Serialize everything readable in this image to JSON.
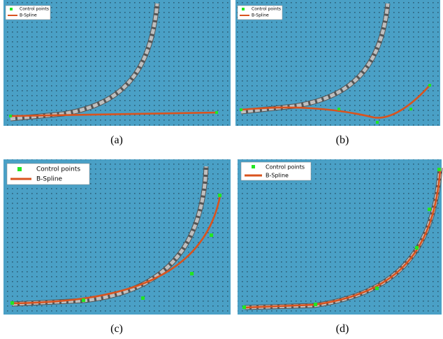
{
  "panels": [
    {
      "caption": "(a)",
      "legend": [
        "Control points",
        "B-Spline"
      ]
    },
    {
      "caption": "(b)",
      "legend": [
        "Control points",
        "B-Spline"
      ]
    },
    {
      "caption": "(c)",
      "legend": [
        "Control points",
        "B-Spline"
      ]
    },
    {
      "caption": "(d)",
      "legend": [
        "Control points",
        "B-Spline"
      ]
    }
  ]
}
